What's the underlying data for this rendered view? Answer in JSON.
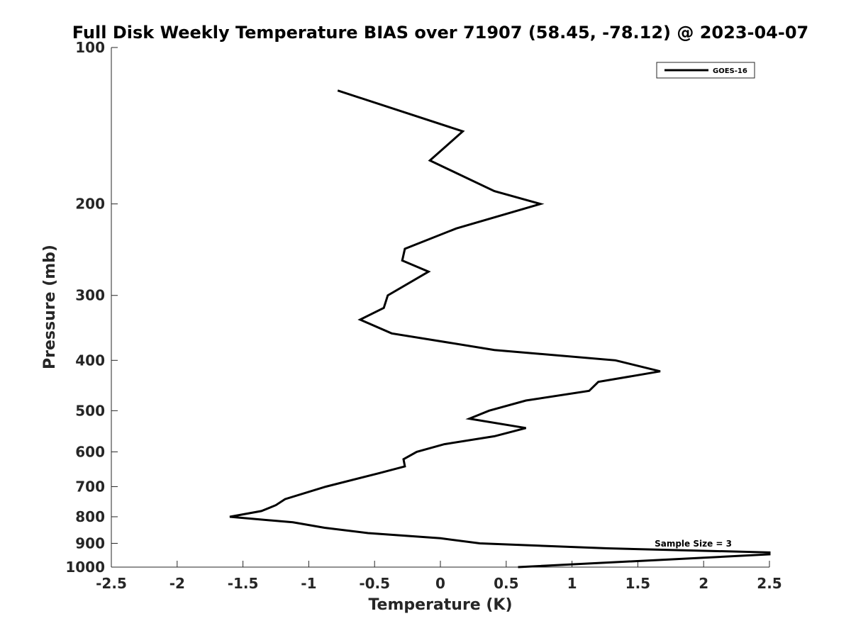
{
  "chart_data": {
    "type": "line",
    "title": "Full Disk Weekly Temperature BIAS over 71907 (58.45, -78.12) @ 2023-04-07",
    "xlabel": "Temperature (K)",
    "ylabel": "Pressure (mb)",
    "xlim": [
      -2.5,
      2.5
    ],
    "ylim": [
      100,
      1000
    ],
    "y_scale": "log",
    "y_reversed": true,
    "xticks": [
      -2.5,
      -2,
      -1.5,
      -1,
      -0.5,
      0,
      0.5,
      1,
      1.5,
      2,
      2.5
    ],
    "xtick_labels": [
      "-2.5",
      "-2",
      "-1.5",
      "-1",
      "-0.5",
      "0",
      "0.5",
      "1",
      "1.5",
      "2",
      "2.5"
    ],
    "yticks": [
      100,
      200,
      300,
      400,
      500,
      600,
      700,
      800,
      900,
      1000
    ],
    "ytick_labels": [
      "100",
      "200",
      "300",
      "400",
      "500",
      "600",
      "700",
      "800",
      "900",
      "1000"
    ],
    "grid": false,
    "legend_position": "top-right",
    "series": [
      {
        "name": "GOES-16",
        "color": "#000000",
        "points": [
          [
            -0.78,
            121
          ],
          [
            0.17,
            145
          ],
          [
            -0.08,
            165
          ],
          [
            0.41,
            189
          ],
          [
            0.76,
            200
          ],
          [
            0.12,
            223
          ],
          [
            -0.27,
            244
          ],
          [
            -0.29,
            257
          ],
          [
            -0.09,
            270
          ],
          [
            -0.4,
            300
          ],
          [
            -0.43,
            317
          ],
          [
            -0.61,
            334
          ],
          [
            -0.37,
            355
          ],
          [
            0.41,
            382
          ],
          [
            1.33,
            400
          ],
          [
            1.67,
            420
          ],
          [
            1.2,
            440
          ],
          [
            1.13,
            458
          ],
          [
            0.65,
            478
          ],
          [
            0.37,
            500
          ],
          [
            0.22,
            518
          ],
          [
            0.65,
            540
          ],
          [
            0.41,
            560
          ],
          [
            0.03,
            580
          ],
          [
            -0.18,
            600
          ],
          [
            -0.28,
            620
          ],
          [
            -0.27,
            640
          ],
          [
            -0.47,
            660
          ],
          [
            -0.87,
            700
          ],
          [
            -1.18,
            740
          ],
          [
            -1.25,
            760
          ],
          [
            -1.36,
            780
          ],
          [
            -1.6,
            800
          ],
          [
            -1.12,
            820
          ],
          [
            -0.88,
            840
          ],
          [
            -0.55,
            860
          ],
          [
            0.0,
            880
          ],
          [
            0.3,
            900
          ],
          [
            1.27,
            920
          ],
          [
            2.5,
            937
          ],
          [
            2.5,
            945
          ],
          [
            0.59,
            1000
          ]
        ]
      }
    ],
    "annotation": "Sample Size = 3"
  }
}
